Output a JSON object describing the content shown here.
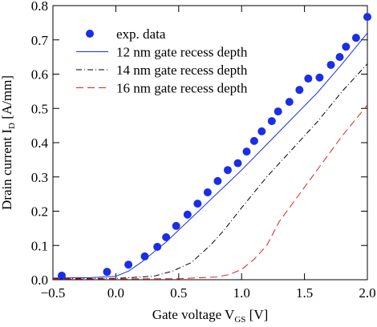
{
  "chart_data": {
    "type": "line",
    "xlabel": {
      "text": "Gate voltage V",
      "sub": "GS",
      "unit": " [V]"
    },
    "ylabel": {
      "text": "Drain current I",
      "sub": "D",
      "unit": " [A/mm]"
    },
    "xlim": [
      -0.5,
      2.0
    ],
    "ylim": [
      0.0,
      0.8
    ],
    "xticks": [
      {
        "value": -0.5,
        "label": "−0.5"
      },
      {
        "value": 0,
        "label": "0.0"
      },
      0.5,
      {
        "value": 1,
        "label": "1.0"
      },
      1.5,
      {
        "value": 2,
        "label": "2.0"
      }
    ],
    "yticks": [
      {
        "value": 0,
        "label": "0.0"
      },
      0.1,
      0.2,
      0.3,
      0.4,
      0.5,
      0.6,
      0.7,
      0.8
    ],
    "legend": "upper-left",
    "series": [
      {
        "name": "exp. data",
        "type": "scatter",
        "color": "#1a2ee6",
        "x": [
          -0.43,
          -0.07,
          0.1,
          0.23,
          0.33,
          0.4,
          0.48,
          0.57,
          0.65,
          0.73,
          0.81,
          0.89,
          0.97,
          1.04,
          1.1,
          1.16,
          1.24,
          1.29,
          1.38,
          1.46,
          1.53,
          1.62,
          1.71,
          1.78,
          1.83,
          1.91,
          2.0
        ],
        "values": [
          0.012,
          0.023,
          0.044,
          0.068,
          0.096,
          0.124,
          0.157,
          0.19,
          0.222,
          0.255,
          0.288,
          0.32,
          0.34,
          0.374,
          0.405,
          0.433,
          0.463,
          0.491,
          0.519,
          0.554,
          0.587,
          0.59,
          0.627,
          0.65,
          0.68,
          0.706,
          0.767
        ]
      },
      {
        "name": "12 nm gate recess depth",
        "type": "line",
        "color": "#1a2ee6",
        "dash": "solid",
        "x": [
          -0.5,
          -0.2,
          0,
          0.1,
          0.2,
          0.3,
          0.4,
          0.5,
          0.6,
          0.7,
          0.8,
          0.9,
          1.0,
          1.2,
          1.4,
          1.6,
          1.8,
          2.0
        ],
        "values": [
          0.005,
          0.006,
          0.01,
          0.025,
          0.05,
          0.08,
          0.11,
          0.145,
          0.18,
          0.215,
          0.25,
          0.285,
          0.32,
          0.395,
          0.47,
          0.545,
          0.63,
          0.72
        ]
      },
      {
        "name": "14 nm gate recess depth",
        "type": "line",
        "color": "#000000",
        "dash": "dashdot",
        "x": [
          -0.5,
          0,
          0.3,
          0.45,
          0.6,
          0.75,
          0.85,
          1.0,
          1.2,
          1.4,
          1.6,
          1.8,
          2.0
        ],
        "values": [
          0.003,
          0.004,
          0.01,
          0.025,
          0.05,
          0.1,
          0.14,
          0.21,
          0.3,
          0.38,
          0.46,
          0.55,
          0.63
        ]
      },
      {
        "name": "16 nm gate recess depth",
        "type": "line",
        "color": "#e02020",
        "dash": "dashed",
        "x": [
          -0.5,
          0.5,
          0.8,
          0.9,
          1.0,
          1.1,
          1.2,
          1.3,
          1.4,
          1.6,
          1.8,
          2.0
        ],
        "values": [
          0.002,
          0.003,
          0.008,
          0.015,
          0.03,
          0.06,
          0.1,
          0.17,
          0.22,
          0.32,
          0.42,
          0.51
        ]
      }
    ]
  }
}
